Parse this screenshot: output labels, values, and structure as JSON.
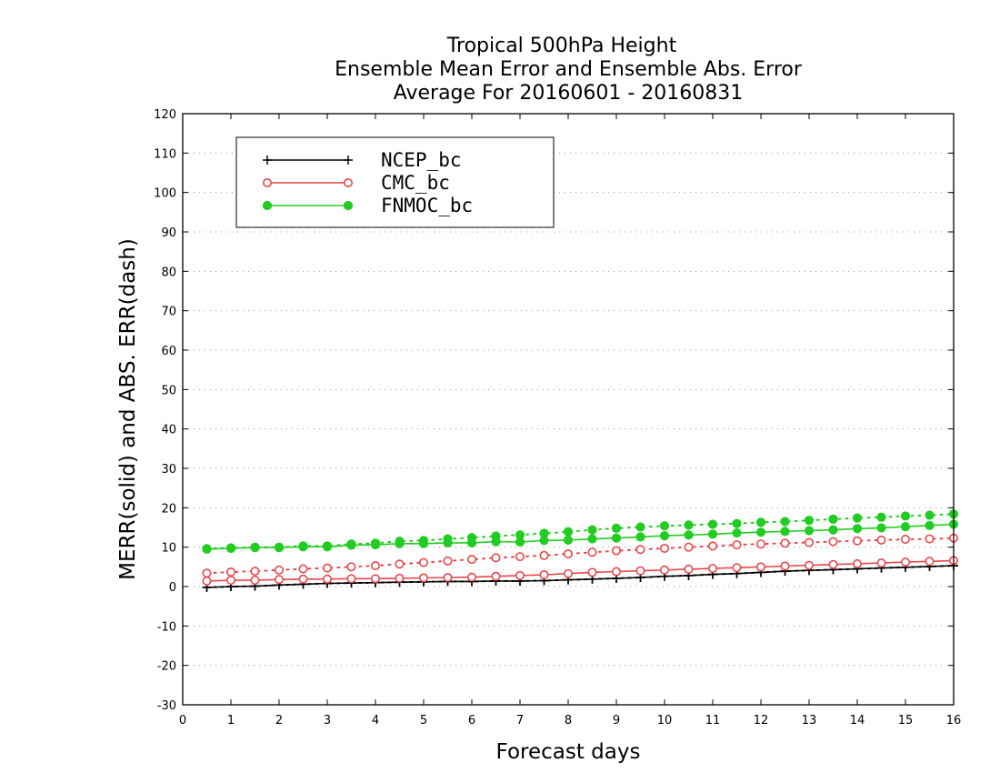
{
  "chart_data": {
    "type": "line",
    "title": [
      "Tropical 500hPa Height",
      "Ensemble Mean Error and Ensemble Abs. Error",
      "Average For 20160601 - 20160831"
    ],
    "xlabel": "Forecast days",
    "ylabel": "MERR(solid) and ABS. ERR(dash)",
    "xlim": [
      0,
      16
    ],
    "ylim": [
      -30,
      120
    ],
    "xticks": [
      "0",
      "1",
      "2",
      "3",
      "4",
      "5",
      "6",
      "7",
      "8",
      "9",
      "10",
      "11",
      "12",
      "13",
      "14",
      "15",
      "16"
    ],
    "yticks": [
      "-30",
      "-20",
      "-10",
      "0",
      "10",
      "20",
      "30",
      "40",
      "50",
      "60",
      "70",
      "80",
      "90",
      "100",
      "110",
      "120"
    ],
    "grid": true,
    "legend_position": "top-left",
    "x": [
      0.5,
      1,
      1.5,
      2,
      2.5,
      3,
      3.5,
      4,
      4.5,
      5,
      5.5,
      6,
      6.5,
      7,
      7.5,
      8,
      8.5,
      9,
      9.5,
      10,
      10.5,
      11,
      11.5,
      12,
      12.5,
      13,
      13.5,
      14,
      14.5,
      15,
      15.5,
      16
    ],
    "series": [
      {
        "name": "NCEP_bc",
        "color": "#000000",
        "marker": "plus",
        "merr": [
          -0.2,
          0,
          0.1,
          0.4,
          0.6,
          0.8,
          0.9,
          1,
          1.1,
          1.2,
          1.3,
          1.3,
          1.4,
          1.4,
          1.5,
          1.7,
          1.9,
          2.1,
          2.3,
          2.6,
          2.8,
          3.1,
          3.3,
          3.6,
          3.9,
          4.1,
          4.3,
          4.5,
          4.7,
          4.9,
          5.1,
          5.3
        ],
        "abs_err": [
          -0.2,
          0,
          0.1,
          0.4,
          0.6,
          0.8,
          0.9,
          1,
          1.1,
          1.2,
          1.3,
          1.3,
          1.4,
          1.4,
          1.5,
          1.7,
          1.9,
          2.1,
          2.3,
          2.6,
          2.8,
          3.1,
          3.3,
          3.6,
          3.9,
          4.1,
          4.3,
          4.5,
          4.7,
          4.9,
          5.1,
          5.3
        ]
      },
      {
        "name": "CMC_bc",
        "color": "#e8474a",
        "marker": "open-circle",
        "merr": [
          1.4,
          1.6,
          1.6,
          1.8,
          1.9,
          1.9,
          2,
          2,
          2.1,
          2.2,
          2.3,
          2.4,
          2.6,
          2.8,
          3,
          3.3,
          3.6,
          3.8,
          4,
          4.2,
          4.4,
          4.6,
          4.8,
          5,
          5.2,
          5.4,
          5.6,
          5.8,
          6,
          6.2,
          6.4,
          6.6
        ],
        "abs_err": [
          3.4,
          3.7,
          3.9,
          4.2,
          4.5,
          4.7,
          5,
          5.3,
          5.7,
          6.1,
          6.5,
          6.9,
          7.3,
          7.6,
          7.9,
          8.3,
          8.7,
          9.1,
          9.4,
          9.7,
          10,
          10.3,
          10.6,
          10.8,
          11,
          11.2,
          11.4,
          11.6,
          11.8,
          12,
          12.1,
          12.3
        ]
      },
      {
        "name": "FNMOC_bc",
        "color": "#22cc22",
        "marker": "filled-circle",
        "merr": [
          9.5,
          9.7,
          9.9,
          9.9,
          10.1,
          10.1,
          10.5,
          10.6,
          10.9,
          10.9,
          11.1,
          11.1,
          11.4,
          11.3,
          11.7,
          11.8,
          12.1,
          12.3,
          12.6,
          12.9,
          13.1,
          13.3,
          13.6,
          13.8,
          14,
          14.2,
          14.4,
          14.7,
          14.9,
          15.2,
          15.5,
          15.8
        ],
        "abs_err": [
          9.6,
          9.8,
          10,
          10,
          10.3,
          10.3,
          10.8,
          11,
          11.5,
          11.7,
          12.1,
          12.4,
          12.8,
          13.1,
          13.5,
          13.9,
          14.4,
          14.8,
          15.1,
          15.4,
          15.6,
          15.8,
          16,
          16.3,
          16.5,
          16.8,
          17.1,
          17.4,
          17.6,
          17.9,
          18.1,
          18.4
        ]
      }
    ]
  }
}
